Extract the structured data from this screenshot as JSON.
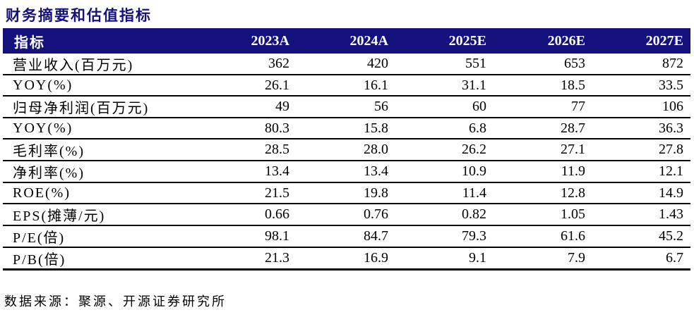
{
  "page": {
    "title": "财务摘要和估值指标",
    "source_note": "数据来源：聚源、开源证券研究所"
  },
  "colors": {
    "navy": "#14117C",
    "header_text": "#FFFFFF",
    "body_text": "#000000"
  },
  "table": {
    "header": [
      "指标",
      "2023A",
      "2024A",
      "2025E",
      "2026E",
      "2027E"
    ],
    "rows": [
      {
        "label": "营业收入(百万元)",
        "values": [
          "362",
          "420",
          "551",
          "653",
          "872"
        ]
      },
      {
        "label": "YOY(%)",
        "values": [
          "26.1",
          "16.1",
          "31.1",
          "18.5",
          "33.5"
        ]
      },
      {
        "label": "归母净利润(百万元)",
        "values": [
          "49",
          "56",
          "60",
          "77",
          "106"
        ]
      },
      {
        "label": "YOY(%)",
        "values": [
          "80.3",
          "15.8",
          "6.8",
          "28.7",
          "36.3"
        ]
      },
      {
        "label": "毛利率(%)",
        "values": [
          "28.5",
          "28.0",
          "26.2",
          "27.1",
          "27.8"
        ]
      },
      {
        "label": "净利率(%)",
        "values": [
          "13.4",
          "13.4",
          "10.9",
          "11.9",
          "12.1"
        ]
      },
      {
        "label": "ROE(%)",
        "values": [
          "21.5",
          "19.8",
          "11.4",
          "12.8",
          "14.9"
        ]
      },
      {
        "label": "EPS(摊薄/元)",
        "values": [
          "0.66",
          "0.76",
          "0.82",
          "1.05",
          "1.43"
        ]
      },
      {
        "label": "P/E(倍)",
        "values": [
          "98.1",
          "84.7",
          "79.3",
          "61.6",
          "45.2"
        ]
      },
      {
        "label": "P/B(倍)",
        "values": [
          "21.3",
          "16.9",
          "9.1",
          "7.9",
          "6.7"
        ]
      }
    ]
  }
}
